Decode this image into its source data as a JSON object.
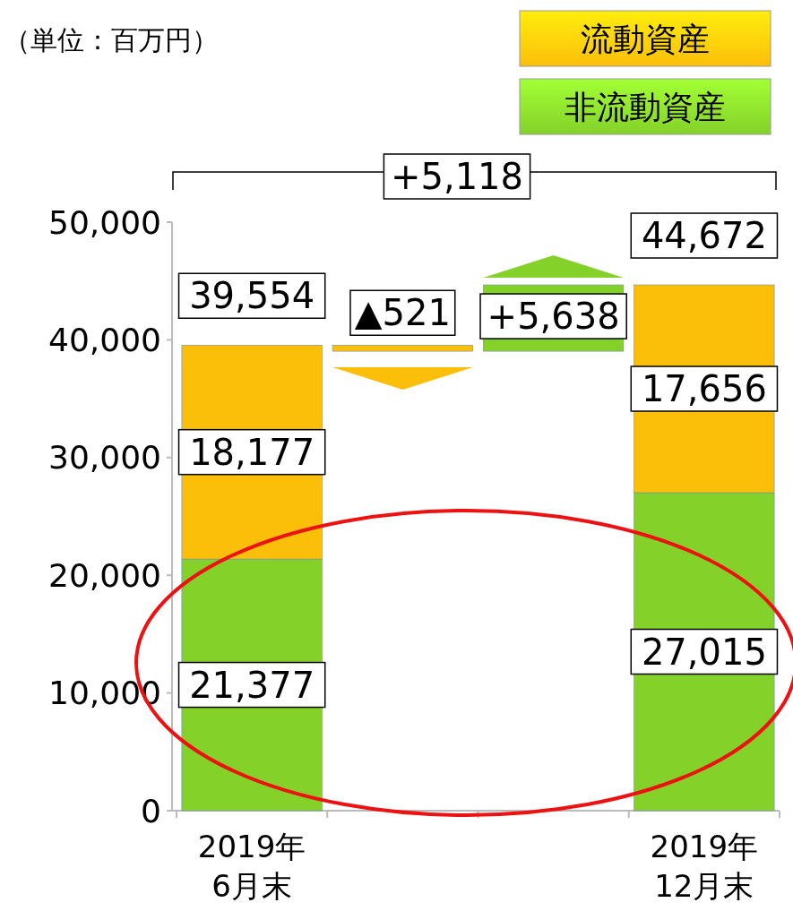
{
  "chart_data": {
    "type": "bar",
    "stacked": true,
    "categories": [
      "2019年\n6月末",
      null,
      null,
      "2019年\n12月末"
    ],
    "series": [
      {
        "name": "非流動資産",
        "color": "#84d12a",
        "values": [
          21377,
          null,
          null,
          27015
        ],
        "value_labels": [
          "21,377",
          null,
          null,
          "27,015"
        ]
      },
      {
        "name": "流動資産",
        "color": "#fbbf0a",
        "values": [
          18177,
          null,
          null,
          17656
        ],
        "value_labels": [
          "18,177",
          null,
          null,
          "17,656"
        ]
      },
      {
        "color": "#fbbf0a",
        "values": [
          null,
          521,
          null,
          null
        ],
        "base": [
          null,
          39033,
          null,
          null
        ],
        "value_labels": [
          null,
          "▲521",
          null,
          null
        ]
      },
      {
        "color": "#84d12a",
        "values": [
          null,
          null,
          5638,
          null
        ],
        "base": [
          null,
          null,
          39033,
          null
        ],
        "value_labels": [
          null,
          null,
          "+5,638",
          null
        ]
      }
    ],
    "totals": [
      "39,554",
      null,
      null,
      "44,672"
    ],
    "annotations": [
      "（単位：百万円）",
      "+5,118"
    ],
    "ylim": [
      0,
      50000
    ],
    "yticks": [
      {
        "value": 0,
        "label": "0"
      },
      {
        "value": 10000,
        "label": "10,000"
      },
      {
        "value": 20000,
        "label": "20,000"
      },
      {
        "value": 30000,
        "label": "30,000"
      },
      {
        "value": 40000,
        "label": "40,000"
      },
      {
        "value": 50000,
        "label": "50,000"
      }
    ],
    "grid": false,
    "legend": "top right"
  }
}
